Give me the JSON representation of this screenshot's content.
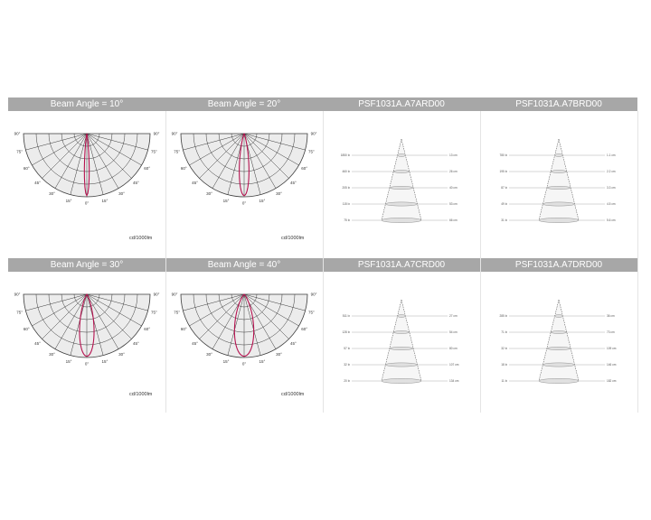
{
  "headers": [
    "Beam Angle = 10°",
    "Beam Angle = 20°",
    "PSF1031A.A7ARD00",
    "PSF1031A.A7BRD00",
    "Beam Angle = 30°",
    "Beam Angle = 40°",
    "PSF1031A.A7CRD00",
    "PSF1031A.A7DRD00"
  ],
  "unit_label": "cd/1000lm",
  "polar_charts": [
    {
      "beam_angle_deg": 10,
      "angle_labels": [
        "90°",
        "75°",
        "60°",
        "45°",
        "30°",
        "15°",
        "0°",
        "15°",
        "30°",
        "45°",
        "60°",
        "75°",
        "90°"
      ]
    },
    {
      "beam_angle_deg": 20,
      "angle_labels": [
        "90°",
        "75°",
        "60°",
        "45°",
        "30°",
        "15°",
        "0°",
        "15°",
        "30°",
        "45°",
        "60°",
        "75°",
        "90°"
      ]
    },
    {
      "beam_angle_deg": 30,
      "angle_labels": [
        "90°",
        "75°",
        "60°",
        "45°",
        "30°",
        "15°",
        "0°",
        "15°",
        "30°",
        "45°",
        "60°",
        "75°",
        "90°"
      ]
    },
    {
      "beam_angle_deg": 40,
      "angle_labels": [
        "90°",
        "75°",
        "60°",
        "45°",
        "30°",
        "15°",
        "0°",
        "15°",
        "30°",
        "45°",
        "60°",
        "75°",
        "90°"
      ]
    }
  ],
  "cone_diagrams": [
    {
      "product": "PSF1031A.A7ARD00",
      "left_labels": [
        "1850 lx",
        "460 lx",
        "205 lx",
        "115 lx",
        "75 lx"
      ],
      "right_labels": [
        "13 cm",
        "26 cm",
        "40 cm",
        "53 cm",
        "66 cm"
      ]
    },
    {
      "product": "PSF1031A.A7BRD00",
      "left_labels": [
        "780 lx",
        "195 lx",
        "87 lx",
        "49 lx",
        "31 lx"
      ],
      "right_labels": [
        "1.1 cm",
        "2.2 cm",
        "3.3 cm",
        "4.5 cm",
        "5.6 cm"
      ]
    },
    {
      "product": "PSF1031A.A7CRD00",
      "left_labels": [
        "511 lx",
        "128 lx",
        "57 lx",
        "32 lx",
        "20 lx"
      ],
      "right_labels": [
        "27 cm",
        "54 cm",
        "80 cm",
        "107 cm",
        "134 cm"
      ]
    },
    {
      "product": "PSF1031A.A7DRD00",
      "left_labels": [
        "285 lx",
        "71 lx",
        "32 lx",
        "18 lx",
        "11 lx"
      ],
      "right_labels": [
        "36 cm",
        "73 cm",
        "109 cm",
        "146 cm",
        "182 cm"
      ]
    }
  ],
  "colors": {
    "header_bg": "#a7a7a7",
    "curve": "#b5124f",
    "grid": "#3a3a3a",
    "fill": "#ececec"
  }
}
